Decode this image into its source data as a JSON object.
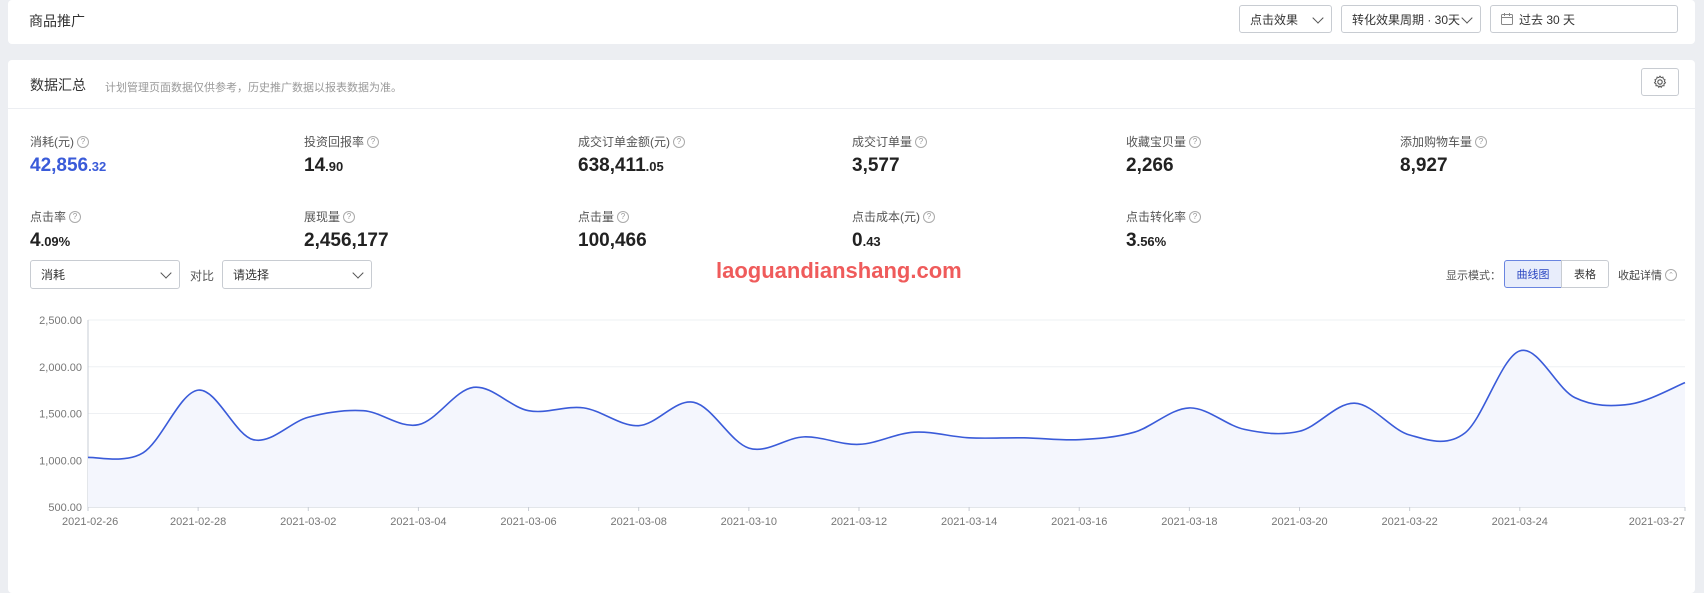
{
  "header": {
    "title": "商品推广",
    "filter_click": "点击效果",
    "filter_cycle": "转化效果周期 · 30天",
    "date_range": "过去 30 天"
  },
  "summary": {
    "title": "数据汇总",
    "note": "计划管理页面数据仅供参考，历史推广数据以报表数据为准。"
  },
  "metrics": [
    {
      "label": "消耗(元)",
      "int": "42,856",
      "dec": ".32",
      "highlight": true
    },
    {
      "label": "投资回报率",
      "int": "14",
      "dec": ".90"
    },
    {
      "label": "成交订单金额(元)",
      "int": "638,411",
      "dec": ".05"
    },
    {
      "label": "成交订单量",
      "int": "3,577",
      "dec": ""
    },
    {
      "label": "收藏宝贝量",
      "int": "2,266",
      "dec": ""
    },
    {
      "label": "添加购物车量",
      "int": "8,927",
      "dec": ""
    },
    {
      "label": "点击率",
      "int": "4",
      "dec": ".09%"
    },
    {
      "label": "展现量",
      "int": "2,456,177",
      "dec": ""
    },
    {
      "label": "点击量",
      "int": "100,466",
      "dec": ""
    },
    {
      "label": "点击成本(元)",
      "int": "0",
      "dec": ".43"
    },
    {
      "label": "点击转化率",
      "int": "3",
      "dec": ".56%"
    }
  ],
  "controls": {
    "metric_select": "消耗",
    "compare_label": "对比",
    "compare_placeholder": "请选择",
    "display_mode_label": "显示模式：",
    "mode_curve": "曲线图",
    "mode_table": "表格",
    "collapse": "收起详情"
  },
  "watermark": "laoguandianshang.com",
  "colors": {
    "line": "#3a5bd9",
    "accent": "#3a5bd9",
    "watermark": "#ef5b5b"
  },
  "chart_data": {
    "type": "area",
    "ylim": [
      500,
      2500
    ],
    "yticks": [
      "500.00",
      "1,000.00",
      "1,500.00",
      "2,000.00",
      "2,500.00"
    ],
    "ytick_values": [
      500,
      1000,
      1500,
      2000,
      2500
    ],
    "xtick_labels": [
      "2021-02-26",
      "2021-02-28",
      "2021-03-02",
      "2021-03-04",
      "2021-03-06",
      "2021-03-08",
      "2021-03-10",
      "2021-03-12",
      "2021-03-14",
      "2021-03-16",
      "2021-03-18",
      "2021-03-20",
      "2021-03-22",
      "2021-03-24",
      "2021-03-27"
    ],
    "x": [
      "2021-02-26",
      "2021-02-27",
      "2021-02-28",
      "2021-03-01",
      "2021-03-02",
      "2021-03-03",
      "2021-03-04",
      "2021-03-05",
      "2021-03-06",
      "2021-03-07",
      "2021-03-08",
      "2021-03-09",
      "2021-03-10",
      "2021-03-11",
      "2021-03-12",
      "2021-03-13",
      "2021-03-14",
      "2021-03-15",
      "2021-03-16",
      "2021-03-17",
      "2021-03-18",
      "2021-03-19",
      "2021-03-20",
      "2021-03-21",
      "2021-03-22",
      "2021-03-23",
      "2021-03-24",
      "2021-03-25",
      "2021-03-26",
      "2021-03-27"
    ],
    "values": [
      1030,
      1080,
      1750,
      1220,
      1460,
      1530,
      1380,
      1780,
      1530,
      1560,
      1370,
      1620,
      1130,
      1250,
      1170,
      1300,
      1240,
      1240,
      1220,
      1300,
      1560,
      1330,
      1310,
      1610,
      1270,
      1290,
      2170,
      1670,
      1600,
      1830
    ],
    "grid": true
  }
}
